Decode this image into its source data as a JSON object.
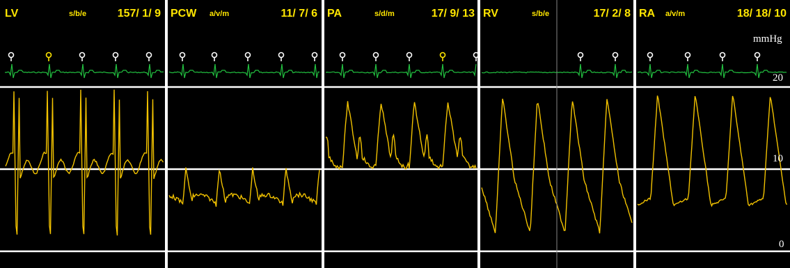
{
  "panels": [
    {
      "label": "LV",
      "mode": "s/b/e",
      "values": "157/  1/  9",
      "waveform": "lv"
    },
    {
      "label": "PCW",
      "mode": "a/v/m",
      "values": "11/  7/  6",
      "waveform": "pcw"
    },
    {
      "label": "PA",
      "mode": "s/d/m",
      "values": "17/  9/ 13",
      "waveform": "pa"
    },
    {
      "label": "RV",
      "mode": "s/b/e",
      "values": "17/  2/  8",
      "waveform": "rv"
    },
    {
      "label": "RA",
      "mode": "a/v/m",
      "values": "18/ 18/ 10",
      "waveform": "ra"
    }
  ],
  "scale": {
    "unit": "mmHg",
    "ticks": [
      {
        "label": "20",
        "value": 20
      },
      {
        "label": "10",
        "value": 10
      },
      {
        "label": "0",
        "value": 0
      }
    ]
  },
  "colors": {
    "pressure_trace": "#f2c200",
    "ecg_trace": "#22c040",
    "header_text": "#ffe600",
    "marker": "#ffffff",
    "marker_active": "#ffe600",
    "gridline": "#ffffff",
    "background": "#000000"
  }
}
